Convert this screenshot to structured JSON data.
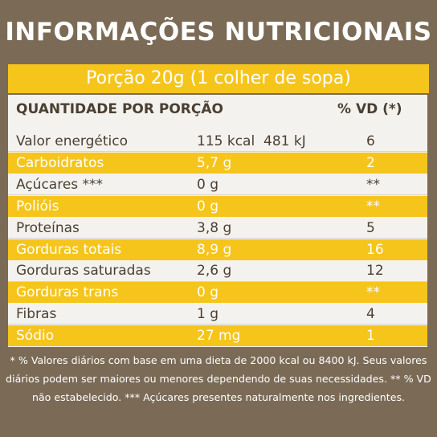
{
  "title": "INFORMAÇÕES NUTRICIONAIS",
  "serving": "Porção 20g (1 colher de sopa)",
  "header": {
    "quantity": "QUANTIDADE POR PORÇÃO",
    "vd": "% VD (*)"
  },
  "rows": [
    [
      "Valor energético",
      "115 kcal",
      "481 kJ",
      "6"
    ],
    [
      "Carboidratos",
      "5,7 g",
      "2"
    ],
    [
      "Açúcares ***",
      "0 g",
      "**"
    ],
    [
      "Polióis",
      "0 g",
      "**"
    ],
    [
      "Proteínas",
      "3,8 g",
      "5"
    ],
    [
      "Gorduras totais",
      "8,9 g",
      "16"
    ],
    [
      "Gorduras saturadas",
      "2,6 g",
      "12"
    ],
    [
      "Gorduras trans",
      "0 g",
      "**"
    ],
    [
      "Fibras",
      "1 g",
      "4"
    ],
    [
      "Sódio",
      "27 mg",
      "1"
    ]
  ],
  "footnote": "* % Valores diários com base em uma dieta de 2000 kcal ou 8400 kJ. Seus valores diários podem ser maiores ou menores dependendo de suas necessidades. ** % VD não estabelecido. *** Açúcares presentes naturalmente nos ingredientes."
}
